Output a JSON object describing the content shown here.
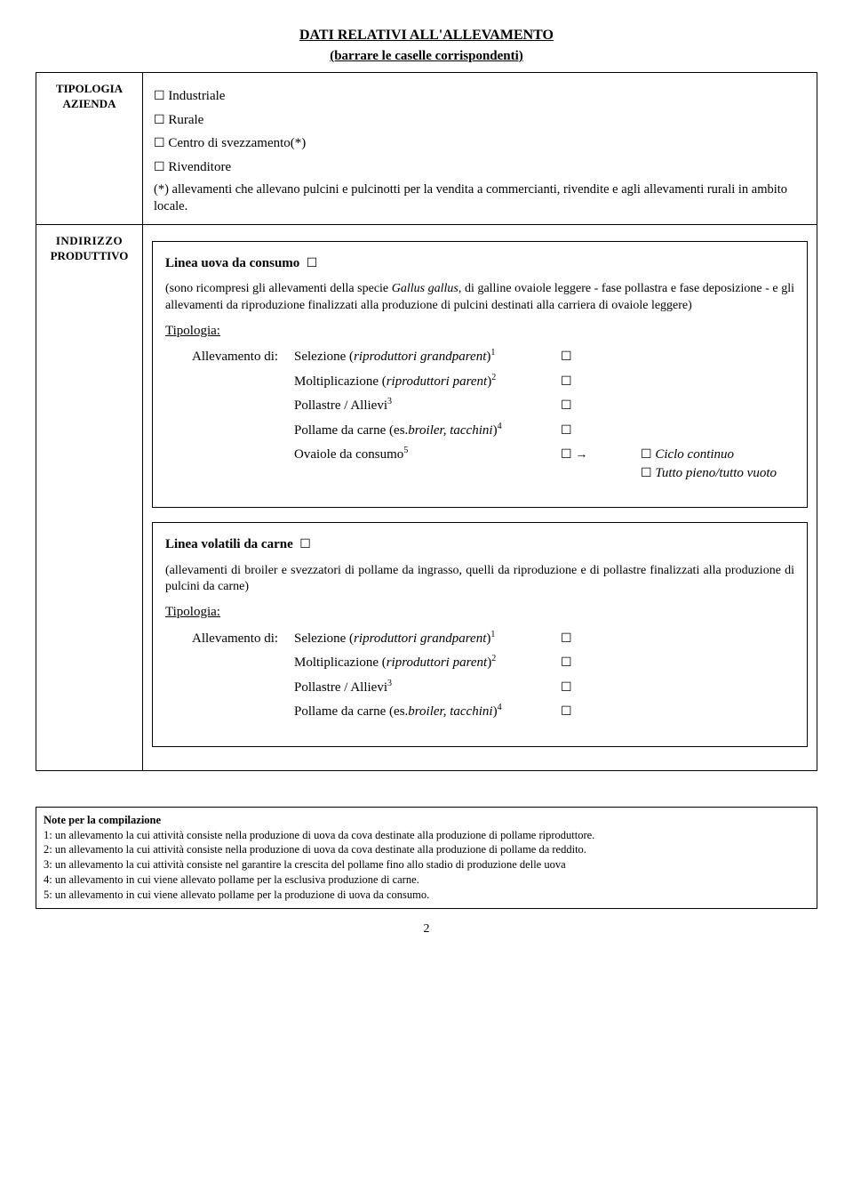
{
  "header": {
    "title": "DATI RELATIVI ALL'ALLEVAMENTO",
    "subtitle": "(barrare le caselle corrispondenti)"
  },
  "row1": {
    "label_line1": "TIPOLOGIA",
    "label_line2": "AZIENDA",
    "opt1": "Industriale",
    "opt2": "Rurale",
    "opt3": "Centro di svezzamento(*)",
    "opt4": "Rivenditore",
    "note": "(*) allevamenti che allevano pulcini e pulcinotti per la vendita a commercianti, rivendite e agli allevamenti rurali in ambito locale."
  },
  "row2": {
    "label_line1": "INDIRIZZO",
    "label_line2": "PRODUTTIVO",
    "sectionA": {
      "head": "Linea uova da consumo",
      "desc_pre": "(sono ricompresi gli allevamenti della specie ",
      "desc_it": "Gallus gallus,",
      "desc_post": " di galline ovaiole leggere - fase pollastra e fase deposizione - e gli allevamenti da riproduzione finalizzati alla produzione di pulcini destinati alla carriera di ovaiole leggere)",
      "tipologia": "Tipologia:",
      "alev_lead": "Allevamento di:",
      "items": {
        "i1_pre": "Selezione (",
        "i1_it": "riproduttori grandparent",
        "i1_post": ")",
        "i1_sup": "1",
        "i2_pre": "Moltiplicazione (",
        "i2_it": "riproduttori parent",
        "i2_post": ")",
        "i2_sup": "2",
        "i3_pre": "Pollastre / Allievi",
        "i3_sup": "3",
        "i4_pre": "Pollame da carne (es.",
        "i4_it": "broiler, tacchini",
        "i4_post": ")",
        "i4_sup": "4",
        "i5_pre": "Ovaiole da consumo",
        "i5_sup": "5",
        "extra1": "Ciclo continuo",
        "extra2": "Tutto pieno/tutto vuoto"
      }
    },
    "sectionB": {
      "head": "Linea volatili da carne",
      "desc": "(allevamenti di broiler e svezzatori di pollame da ingrasso, quelli da riproduzione e di pollastre finalizzati alla produzione di pulcini da carne)",
      "tipologia": "Tipologia:",
      "alev_lead": "Allevamento di:",
      "items": {
        "i1_pre": "Selezione (",
        "i1_it": "riproduttori grandparent",
        "i1_post": ")",
        "i1_sup": "1",
        "i2_pre": "Moltiplicazione (",
        "i2_it": "riproduttori parent",
        "i2_post": ")",
        "i2_sup": "2",
        "i3_pre": "Pollastre / Allievi",
        "i3_sup": "3",
        "i4_pre": "Pollame da carne (es.",
        "i4_it": "broiler, tacchini",
        "i4_post": ")",
        "i4_sup": "4"
      }
    }
  },
  "notes": {
    "head": "Note per la compilazione",
    "n1": "1: un allevamento la cui attività consiste nella produzione di uova da cova destinate alla produzione di pollame riproduttore.",
    "n2": "2: un allevamento la cui attività consiste nella produzione di uova da cova destinate alla produzione di pollame da reddito.",
    "n3": "3: un allevamento la cui attività consiste nel garantire la crescita del pollame fino allo stadio di produzione delle uova",
    "n4": "4: un allevamento in cui viene allevato pollame per la esclusiva produzione di carne.",
    "n5": "5: un allevamento in cui viene allevato pollame per la produzione di uova da consumo."
  },
  "glyphs": {
    "box": "☐",
    "arrow": "→"
  },
  "pagenum": "2"
}
